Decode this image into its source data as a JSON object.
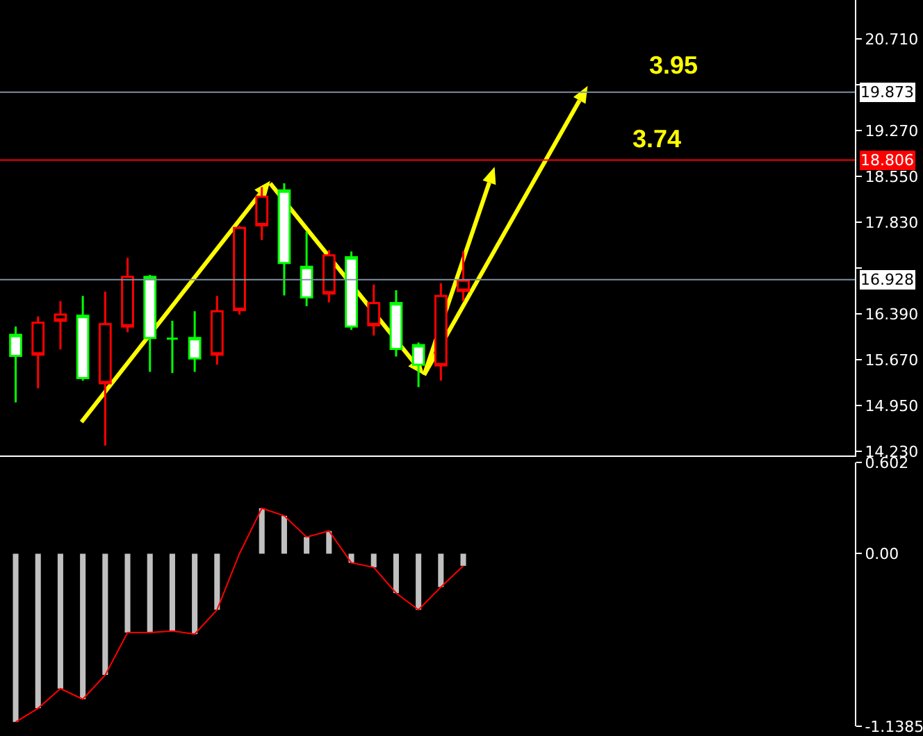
{
  "chart_data": [
    {
      "type": "candlestick",
      "categories": [
        null,
        null,
        null,
        null,
        null,
        null,
        null,
        null,
        null,
        null,
        null,
        null,
        null,
        null,
        null,
        null,
        null,
        null,
        null,
        null,
        null,
        null,
        null,
        null,
        null,
        null,
        null,
        null,
        null,
        null,
        null,
        null,
        null,
        null,
        null,
        null,
        null,
        null
      ],
      "ohlc": [
        [
          15.73,
          16.19,
          15.0,
          16.06
        ],
        [
          16.25,
          16.35,
          15.22,
          15.75
        ],
        [
          16.38,
          16.59,
          15.83,
          16.28
        ],
        [
          15.38,
          16.67,
          15.34,
          16.36
        ],
        [
          16.23,
          16.74,
          14.32,
          15.3
        ],
        [
          16.97,
          17.27,
          16.1,
          16.19
        ],
        [
          16.01,
          17.0,
          15.48,
          16.97
        ],
        [
          16.0,
          16.28,
          15.46,
          16.0
        ],
        [
          15.69,
          16.43,
          15.48,
          16.01
        ],
        [
          16.43,
          16.67,
          15.59,
          15.75
        ],
        [
          17.74,
          17.77,
          16.38,
          16.45
        ],
        [
          18.23,
          18.38,
          17.55,
          17.78
        ],
        [
          17.19,
          18.44,
          16.68,
          18.33
        ],
        [
          16.65,
          17.68,
          16.51,
          17.13
        ],
        [
          17.31,
          17.39,
          16.57,
          16.71
        ],
        [
          16.19,
          17.37,
          16.14,
          17.28
        ],
        [
          16.56,
          16.85,
          16.05,
          16.21
        ],
        [
          15.84,
          16.76,
          15.72,
          16.56
        ],
        [
          15.59,
          15.94,
          15.24,
          15.9
        ],
        [
          16.67,
          16.87,
          15.34,
          15.58
        ],
        [
          16.91,
          17.37,
          16.59,
          16.75
        ],
        null,
        null,
        null,
        null,
        null,
        null,
        null,
        null,
        null,
        null,
        null,
        null,
        null,
        null,
        null,
        null,
        null
      ],
      "colors": [
        "#00ff00",
        "#ff0000",
        "#ff0000",
        "#00ff00",
        "#ff0000",
        "#ff0000",
        "#00ff00",
        "#00ff00",
        "#00ff00",
        "#ff0000",
        "#ff0000",
        "#ff0000",
        "#00ff00",
        "#00ff00",
        "#ff0000",
        "#00ff00",
        "#ff0000",
        "#00ff00",
        "#00ff00",
        "#ff0000",
        "#ff0000",
        null,
        null,
        null,
        null,
        null,
        null,
        null,
        null,
        null,
        null,
        null,
        null,
        null,
        null,
        null,
        null,
        null
      ],
      "ylim": [
        14.165,
        21.32
      ],
      "yticks": [
        {
          "value": 14.23,
          "label": "14.230"
        },
        {
          "value": 14.95,
          "label": "14.950"
        },
        {
          "value": 15.67,
          "label": "15.670"
        },
        {
          "value": 16.39,
          "label": "16.390"
        },
        {
          "value": 17.11,
          "label": null
        },
        {
          "value": 17.83,
          "label": "17.830"
        },
        {
          "value": 18.55,
          "label": "18.550"
        },
        {
          "value": 19.27,
          "label": "19.270"
        },
        {
          "value": 19.99,
          "label": null
        },
        {
          "value": 20.71,
          "label": "20.710"
        }
      ],
      "ref_lines": [
        {
          "axis": "y",
          "value": 19.873,
          "label": "19.873",
          "color": "#8090a0"
        },
        {
          "axis": "y",
          "value": 18.806,
          "label": "18.806",
          "color": "#ff0000"
        },
        {
          "axis": "y",
          "value": 16.928,
          "label": "16.928",
          "color": "#8090a0"
        }
      ],
      "annotations": [
        "3.95",
        "3.74"
      ],
      "tick_labels": "y"
    },
    {
      "type": "bar",
      "categories": [
        null,
        null,
        null,
        null,
        null,
        null,
        null,
        null,
        null,
        null,
        null,
        null,
        null,
        null,
        null,
        null,
        null,
        null,
        null,
        null,
        null,
        null,
        null,
        null,
        null,
        null,
        null,
        null,
        null,
        null,
        null,
        null,
        null,
        null,
        null,
        null,
        null,
        null
      ],
      "series": [
        {
          "type": "bar",
          "color": "#c0c0c0",
          "values": [
            -1.11,
            -1.02,
            -0.89,
            -0.96,
            -0.8,
            -0.52,
            -0.52,
            -0.51,
            -0.53,
            -0.37,
            0.0,
            0.3,
            0.25,
            0.11,
            0.15,
            -0.06,
            -0.09,
            -0.26,
            -0.37,
            -0.22,
            -0.08,
            null,
            null,
            null,
            null,
            null,
            null,
            null,
            null,
            null,
            null,
            null,
            null,
            null,
            null,
            null,
            null,
            null
          ]
        },
        {
          "type": "line",
          "color": "#ff0000",
          "values": [
            -1.11,
            -1.02,
            -0.89,
            -0.96,
            -0.8,
            -0.52,
            -0.52,
            -0.51,
            -0.53,
            -0.37,
            0.0,
            0.3,
            0.25,
            0.11,
            0.15,
            -0.06,
            -0.09,
            -0.26,
            -0.37,
            -0.22,
            -0.08,
            null,
            null,
            null,
            null,
            null,
            null,
            null,
            null,
            null,
            null,
            null,
            null,
            null,
            null,
            null,
            null,
            null
          ]
        }
      ],
      "ylim": [
        -1.1385,
        0.602
      ],
      "yticks": [
        0.602,
        {
          "value": 0,
          "label": "0.00"
        },
        -1.1385
      ],
      "tick_labels": "y"
    }
  ]
}
